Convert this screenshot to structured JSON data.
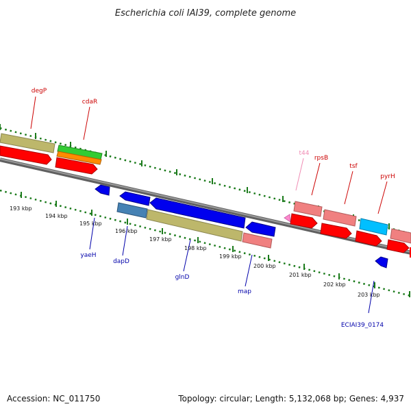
{
  "title": "Escherichia coli IAI39, complete genome",
  "footer": {
    "accession": "Accession: NC_011750",
    "summary": "Topology: circular; Length: 5,132,068 bp; Genes: 4,937"
  },
  "colors": {
    "backbone": "#808080",
    "forward_label": "#cc0000",
    "reverse_label": "#0000aa",
    "tick_green": "#1a7a1a",
    "trna_label": "#f08cb4"
  },
  "scale_labels": [
    "193 kbp",
    "194 kbp",
    "195 kbp",
    "196 kbp",
    "197 kbp",
    "198 kbp",
    "199 kbp",
    "200 kbp",
    "201 kbp",
    "202 kbp",
    "203 kbp"
  ],
  "forward_genes": [
    {
      "label": "degP",
      "type": "CDS"
    },
    {
      "label": "cdaR",
      "type": "CDS"
    },
    {
      "label": "t44",
      "type": "tRNA"
    },
    {
      "label": "rpsB",
      "type": "CDS"
    },
    {
      "label": "tsf",
      "type": "CDS"
    },
    {
      "label": "pyrH",
      "type": "CDS"
    }
  ],
  "reverse_genes": [
    {
      "label": "yaeH",
      "type": "CDS"
    },
    {
      "label": "dapD",
      "type": "CDS"
    },
    {
      "label": "glnD",
      "type": "CDS"
    },
    {
      "label": "map",
      "type": "CDS"
    },
    {
      "label": "ECIAI39_0174",
      "type": "CDS"
    }
  ]
}
